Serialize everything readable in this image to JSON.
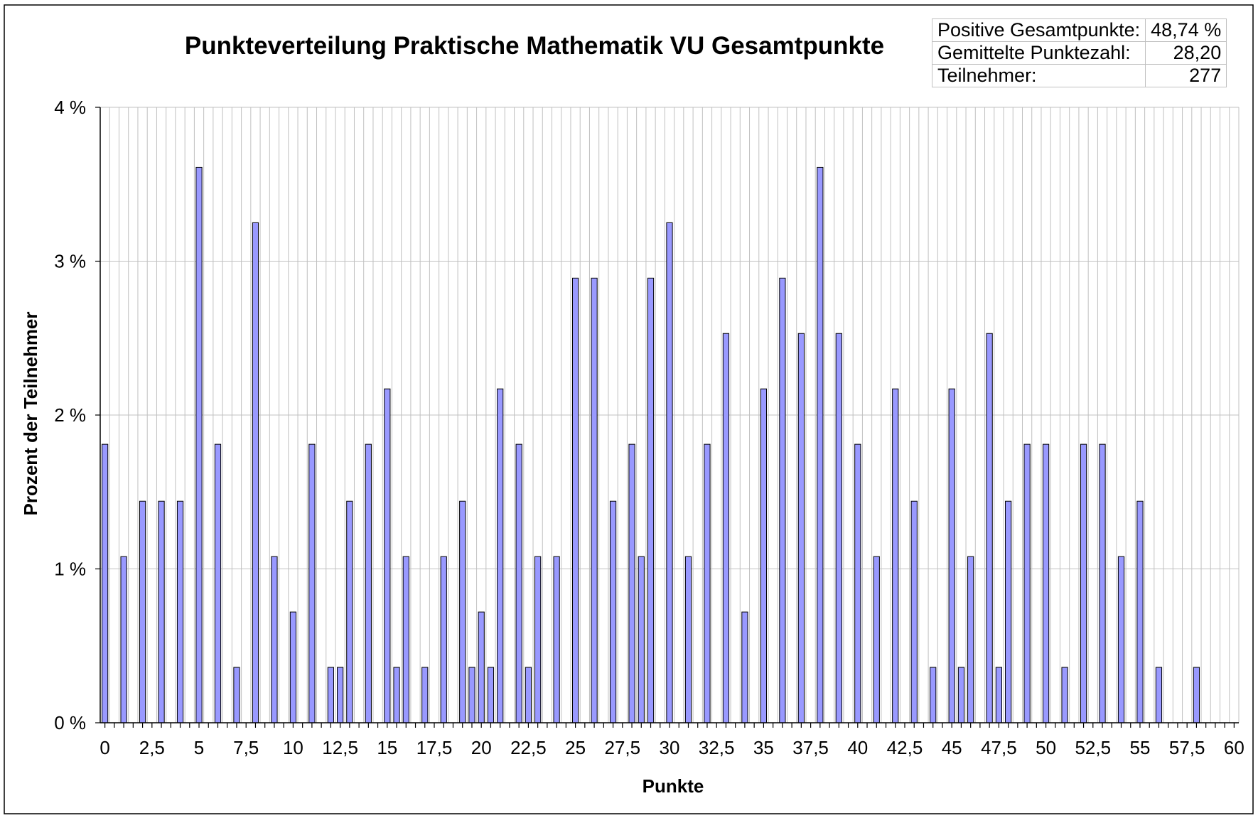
{
  "stats": {
    "rows": [
      {
        "label": "Positive Gesamtpunkte:",
        "value": "48,74 %"
      },
      {
        "label": "Gemittelte Punktezahl:",
        "value": "28,20"
      },
      {
        "label": "Teilnehmer:",
        "value": "277"
      }
    ]
  },
  "chart_data": {
    "type": "bar",
    "title": "Punkteverteilung Praktische Mathematik VU Gesamtpunkte",
    "xlabel": "Punkte",
    "ylabel": "Prozent der Teilnehmer",
    "xlim": [
      0,
      60
    ],
    "ylim": [
      0,
      4
    ],
    "x_step": 0.5,
    "grid": true,
    "bar_color": "#9999ff",
    "xticks": [
      "0",
      "2,5",
      "5",
      "7,5",
      "10",
      "12,5",
      "15",
      "17,5",
      "20",
      "22,5",
      "25",
      "27,5",
      "30",
      "32,5",
      "35",
      "37,5",
      "40",
      "42,5",
      "45",
      "47,5",
      "50",
      "52,5",
      "55",
      "57,5",
      "60"
    ],
    "yticks": [
      "0 %",
      "1 %",
      "2 %",
      "3 %",
      "4 %"
    ],
    "points": [
      {
        "x": 0,
        "y": 1.81
      },
      {
        "x": 1,
        "y": 1.08
      },
      {
        "x": 2,
        "y": 1.44
      },
      {
        "x": 3,
        "y": 1.44
      },
      {
        "x": 4,
        "y": 1.44
      },
      {
        "x": 5,
        "y": 3.61
      },
      {
        "x": 6,
        "y": 1.81
      },
      {
        "x": 7,
        "y": 0.36
      },
      {
        "x": 8,
        "y": 3.25
      },
      {
        "x": 9,
        "y": 1.08
      },
      {
        "x": 10,
        "y": 0.72
      },
      {
        "x": 11,
        "y": 1.81
      },
      {
        "x": 12,
        "y": 0.36
      },
      {
        "x": 12.5,
        "y": 0.36
      },
      {
        "x": 13,
        "y": 1.44
      },
      {
        "x": 14,
        "y": 1.81
      },
      {
        "x": 15,
        "y": 2.17
      },
      {
        "x": 15.5,
        "y": 0.36
      },
      {
        "x": 16,
        "y": 1.08
      },
      {
        "x": 17,
        "y": 0.36
      },
      {
        "x": 18,
        "y": 1.08
      },
      {
        "x": 19,
        "y": 1.44
      },
      {
        "x": 19.5,
        "y": 0.36
      },
      {
        "x": 20,
        "y": 0.72
      },
      {
        "x": 20.5,
        "y": 0.36
      },
      {
        "x": 21,
        "y": 2.17
      },
      {
        "x": 22,
        "y": 1.81
      },
      {
        "x": 22.5,
        "y": 0.36
      },
      {
        "x": 23,
        "y": 1.08
      },
      {
        "x": 24,
        "y": 1.08
      },
      {
        "x": 25,
        "y": 2.89
      },
      {
        "x": 26,
        "y": 2.89
      },
      {
        "x": 27,
        "y": 1.44
      },
      {
        "x": 28,
        "y": 1.81
      },
      {
        "x": 28.5,
        "y": 1.08
      },
      {
        "x": 29,
        "y": 2.89
      },
      {
        "x": 30,
        "y": 3.25
      },
      {
        "x": 31,
        "y": 1.08
      },
      {
        "x": 32,
        "y": 1.81
      },
      {
        "x": 33,
        "y": 2.53
      },
      {
        "x": 34,
        "y": 0.72
      },
      {
        "x": 35,
        "y": 2.17
      },
      {
        "x": 36,
        "y": 2.89
      },
      {
        "x": 37,
        "y": 2.53
      },
      {
        "x": 38,
        "y": 3.61
      },
      {
        "x": 39,
        "y": 2.53
      },
      {
        "x": 40,
        "y": 1.81
      },
      {
        "x": 41,
        "y": 1.08
      },
      {
        "x": 42,
        "y": 2.17
      },
      {
        "x": 43,
        "y": 1.44
      },
      {
        "x": 44,
        "y": 0.36
      },
      {
        "x": 45,
        "y": 2.17
      },
      {
        "x": 45.5,
        "y": 0.36
      },
      {
        "x": 46,
        "y": 1.08
      },
      {
        "x": 47,
        "y": 2.53
      },
      {
        "x": 47.5,
        "y": 0.36
      },
      {
        "x": 48,
        "y": 1.44
      },
      {
        "x": 49,
        "y": 1.81
      },
      {
        "x": 50,
        "y": 1.81
      },
      {
        "x": 51,
        "y": 0.36
      },
      {
        "x": 52,
        "y": 1.81
      },
      {
        "x": 53,
        "y": 1.81
      },
      {
        "x": 54,
        "y": 1.08
      },
      {
        "x": 55,
        "y": 1.44
      },
      {
        "x": 56,
        "y": 0.36
      },
      {
        "x": 58,
        "y": 0.36
      }
    ]
  }
}
